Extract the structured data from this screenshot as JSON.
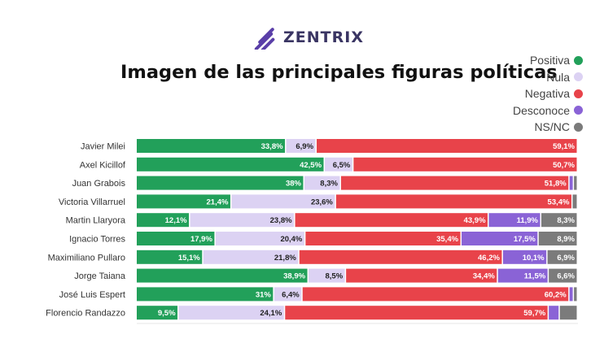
{
  "brand": {
    "name": "ZENTRIX",
    "logo_icon": "zentrix-stripes-logo-icon",
    "logo_color": "#5a3fa8"
  },
  "chart_data": {
    "type": "bar",
    "orientation": "horizontal",
    "stacked": true,
    "percent_stacked": true,
    "title": "Imagen de las principales figuras políticas",
    "legend_position": "top-right",
    "grid": false,
    "categories": [
      "Javier Milei",
      "Axel Kicillof",
      "Juan Grabois",
      "Victoria Villarruel",
      "Martin Llaryora",
      "Ignacio Torres",
      "Maximiliano Pullaro",
      "Jorge Taiana",
      "José Luis Espert",
      "Florencio Randazzo"
    ],
    "series": [
      {
        "name": "Positiva",
        "color": "#22a05a",
        "values": [
          33.8,
          42.5,
          38,
          21.4,
          12.1,
          17.9,
          15.1,
          38.9,
          31,
          9.5
        ],
        "labels": [
          "33,8%",
          "42,5%",
          "38%",
          "21,4%",
          "12,1%",
          "17,9%",
          "15,1%",
          "38,9%",
          "31%",
          "9,5%"
        ]
      },
      {
        "name": "Nula",
        "color": "#dcd2f3",
        "values": [
          6.9,
          6.5,
          8.3,
          23.6,
          23.8,
          20.4,
          21.8,
          8.5,
          6.4,
          24.1
        ],
        "labels": [
          "6,9%",
          "6,5%",
          "8,3%",
          "23,6%",
          "23,8%",
          "20,4%",
          "21,8%",
          "8,5%",
          "6,4%",
          "24,1%"
        ]
      },
      {
        "name": "Negativa",
        "color": "#e8434a",
        "values": [
          59.1,
          50.7,
          51.8,
          53.4,
          43.9,
          35.4,
          46.2,
          34.4,
          60.2,
          59.7
        ],
        "labels": [
          "59,1%",
          "50,7%",
          "51,8%",
          "53,4%",
          "43,9%",
          "35,4%",
          "46,2%",
          "34,4%",
          "60,2%",
          "59,7%"
        ]
      },
      {
        "name": "Desconoce",
        "color": "#8a63d6",
        "values": [
          0,
          0,
          1,
          0,
          11.9,
          17.5,
          10.1,
          11.5,
          1,
          2.5
        ],
        "labels": [
          "",
          "",
          "",
          "",
          "11,9%",
          "17,5%",
          "10,1%",
          "11,5%",
          "",
          ""
        ]
      },
      {
        "name": "NS/NC",
        "color": "#7b7b7b",
        "values": [
          0,
          0,
          0.9,
          1.2,
          8.3,
          8.9,
          6.9,
          6.6,
          0.9,
          4.1
        ],
        "labels": [
          "",
          "",
          "",
          "",
          "8,3%",
          "8,9%",
          "6,9%",
          "6,6%",
          "",
          ""
        ]
      }
    ]
  }
}
